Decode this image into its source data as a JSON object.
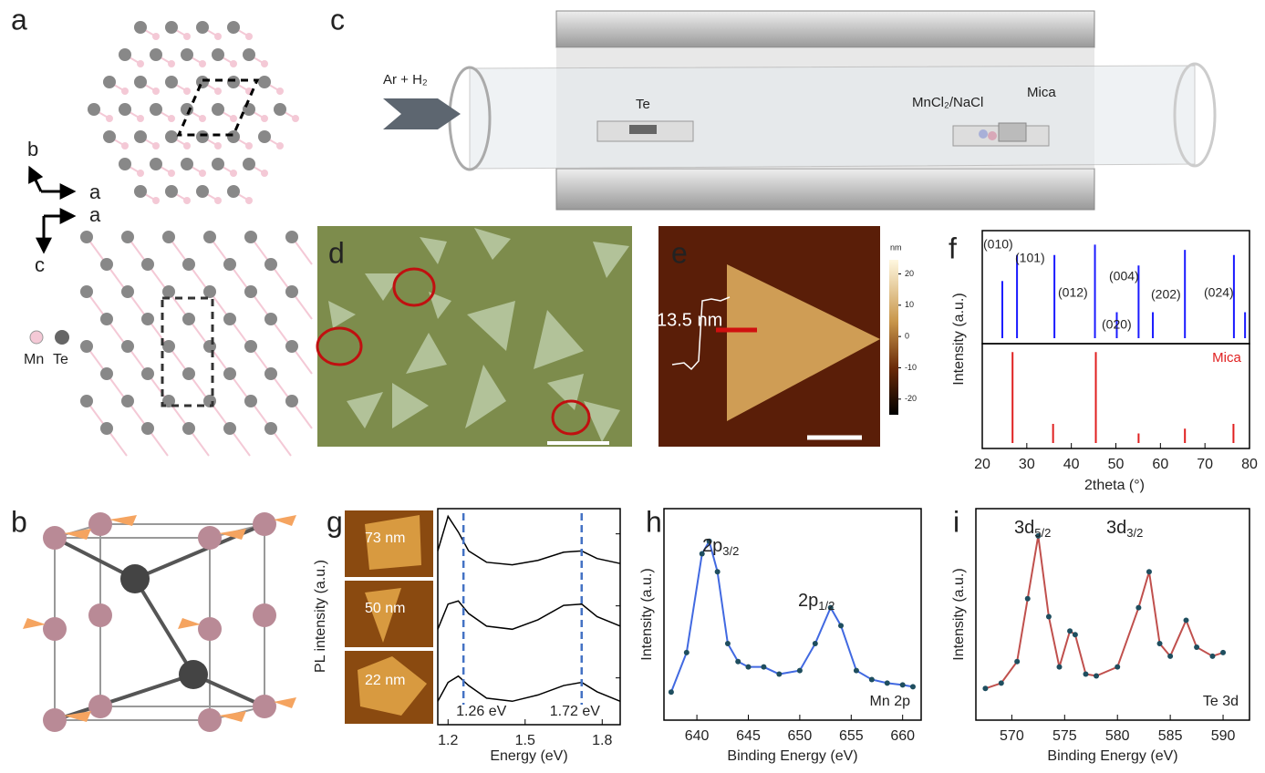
{
  "panel_labels": [
    "a",
    "b",
    "c",
    "d",
    "e",
    "f",
    "g",
    "h",
    "i"
  ],
  "a": {
    "axes": [
      "b",
      "a",
      "a",
      "c"
    ],
    "legend": [
      "Mn",
      "Te"
    ]
  },
  "c": {
    "gas": "Ar + H₂",
    "source": "Te",
    "precursor": "MnCl₂/NaCl",
    "substrate": "Mica"
  },
  "e": {
    "height_label": "13.5 nm",
    "colorbar": {
      "label": "nm",
      "lim": [
        -25,
        24.5
      ],
      "ticks": [
        20,
        10,
        0,
        -10,
        -20
      ]
    }
  },
  "chart_data": [
    {
      "type": "stick",
      "ylabel": "Intensity (a.u.)",
      "color": "#1a1aff",
      "x": [
        24.5,
        27.8,
        36.2,
        45.3,
        50.2,
        55.1,
        58.3,
        65.5,
        76.5,
        79
      ],
      "values": [
        55,
        80,
        80,
        90,
        25,
        70,
        25,
        85,
        80,
        25
      ],
      "ylim": [
        0,
        100
      ],
      "xlim": [
        20,
        80
      ],
      "annotations": [
        "(010)",
        "(101)",
        "(012)",
        "(020)",
        "(004)",
        "(202)",
        "(024)"
      ]
    },
    {
      "type": "stick",
      "series": [
        {
          "name": "Mica",
          "color": "#e02020",
          "x": [
            26.8,
            35.9,
            45.5,
            55.1,
            65.5,
            76.4
          ],
          "values": [
            95,
            20,
            95,
            10,
            15,
            20
          ]
        }
      ],
      "ylim": [
        0,
        100
      ],
      "xlim": [
        20,
        80
      ],
      "xticks": [
        20,
        30,
        40,
        50,
        60,
        70,
        80
      ],
      "xlabel": "2theta (°)"
    },
    {
      "type": "line",
      "ylabel": "PL intensity (a.u.)",
      "xlabel": "Energy (eV)",
      "xlim": [
        1.16,
        1.87
      ],
      "xticks": [
        1.2,
        1.5,
        1.8
      ],
      "ylim": [
        0,
        100
      ],
      "x": [
        1.16,
        1.2,
        1.24,
        1.28,
        1.35,
        1.45,
        1.55,
        1.65,
        1.72,
        1.78,
        1.87
      ],
      "series": [
        {
          "color": "#000000",
          "values": [
            40,
            95,
            70,
            40,
            22,
            18,
            25,
            38,
            40,
            28,
            20
          ]
        },
        {
          "color": "#000000",
          "values": [
            30,
            70,
            75,
            55,
            35,
            30,
            45,
            68,
            70,
            50,
            35
          ]
        },
        {
          "color": "#000000",
          "values": [
            30,
            60,
            70,
            55,
            35,
            30,
            40,
            55,
            60,
            45,
            30
          ]
        }
      ],
      "markers": [
        {
          "value": 1.26,
          "label": "1.26 eV"
        },
        {
          "value": 1.72,
          "label": "1.72 eV"
        }
      ],
      "inset_labels": [
        "73 nm",
        "50 nm",
        "22 nm"
      ]
    },
    {
      "type": "xps",
      "ylabel": "Intensity (a.u.)",
      "xlabel": "Binding Energy (eV)",
      "xlim": [
        636.8,
        661.8
      ],
      "xticks": [
        640,
        645,
        650,
        655,
        660
      ],
      "ylim": [
        0,
        100
      ],
      "x": [
        637.5,
        639,
        640.5,
        641.2,
        642,
        643,
        644,
        645,
        646.5,
        648,
        650,
        651.5,
        653,
        654,
        655.5,
        657,
        658.5,
        660,
        661
      ],
      "series": [
        {
          "color": "#1f4e5f",
          "line_color": "#4169e1",
          "values": [
            8,
            30,
            85,
            92,
            75,
            35,
            25,
            22,
            22,
            18,
            20,
            35,
            55,
            45,
            20,
            15,
            13,
            12,
            11
          ]
        }
      ],
      "annotations": [
        {
          "text": "2p",
          "sub": "3/2"
        },
        {
          "text": "2p",
          "sub": "1/2"
        }
      ],
      "corner_label": "Mn 2p"
    },
    {
      "type": "xps",
      "ylabel": "Intensity (a.u.)",
      "xlabel": "Binding Energy (eV)",
      "xlim": [
        566.6,
        592.5
      ],
      "xticks": [
        570,
        575,
        580,
        585,
        590
      ],
      "ylim": [
        0,
        100
      ],
      "x": [
        567.5,
        569,
        570.5,
        571.5,
        572.5,
        573.5,
        574.5,
        575.5,
        576,
        577,
        578,
        580,
        582,
        583,
        584,
        585,
        586.5,
        587.5,
        589,
        590
      ],
      "series": [
        {
          "color": "#1f4e5f",
          "line_color": "#c0504d",
          "values": [
            10,
            13,
            25,
            60,
            95,
            50,
            22,
            42,
            40,
            18,
            17,
            22,
            55,
            75,
            35,
            28,
            48,
            33,
            28,
            30
          ]
        }
      ],
      "annotations": [
        {
          "text": "3d",
          "sub": "5/2"
        },
        {
          "text": "3d",
          "sub": "3/2"
        }
      ],
      "corner_label": "Te 3d"
    }
  ]
}
